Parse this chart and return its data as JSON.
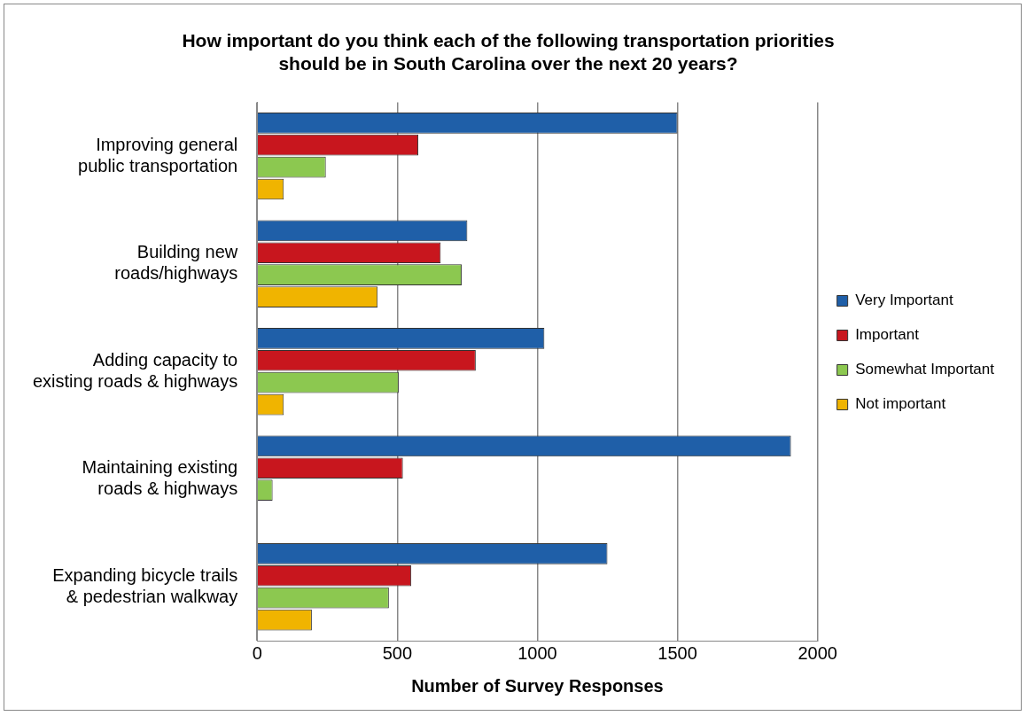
{
  "chart_data": {
    "type": "bar",
    "orientation": "horizontal",
    "title": "How important do you think each of the following transportation priorities should be in South Carolina over the next 20 years?",
    "xlabel": "Number of Survey Responses",
    "categories": [
      "Improving general public transportation",
      "Building new roads/highways",
      "Adding capacity to existing roads & highways",
      "Maintaining existing roads & highways",
      "Expanding bicycle trails & pedestrian walkway"
    ],
    "series": [
      {
        "name": "Very Important",
        "color": "#1f5fa8",
        "values": [
          1500,
          750,
          1025,
          1905,
          1250
        ]
      },
      {
        "name": "Important",
        "color": "#c8161e",
        "values": [
          575,
          655,
          780,
          520,
          550
        ]
      },
      {
        "name": "Somewhat Important",
        "color": "#8cc850",
        "values": [
          245,
          730,
          505,
          55,
          470
        ]
      },
      {
        "name": "Not important",
        "color": "#f0b400",
        "values": [
          95,
          430,
          95,
          0,
          195
        ]
      }
    ],
    "xlim": [
      0,
      2000
    ],
    "xticks": [
      0,
      500,
      1000,
      1500,
      2000
    ],
    "grid": "x",
    "legend": "right"
  }
}
